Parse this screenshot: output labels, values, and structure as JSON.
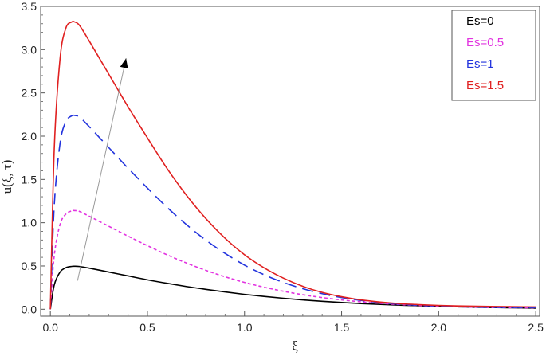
{
  "chart_data": {
    "type": "line",
    "title": "",
    "xlabel": "ξ",
    "ylabel": "u(ξ, τ)",
    "xlim": [
      -0.05,
      2.52
    ],
    "ylim": [
      -0.08,
      3.5
    ],
    "x_ticks": [
      0.0,
      0.5,
      1.0,
      1.5,
      2.0,
      2.5
    ],
    "y_ticks": [
      0.0,
      0.5,
      1.0,
      1.5,
      2.0,
      2.5,
      3.0,
      3.5
    ],
    "x_tick_labels": [
      "0.0",
      "0.5",
      "1.0",
      "1.5",
      "2.0",
      "2.5"
    ],
    "y_tick_labels": [
      "0.0",
      "0.5",
      "1.0",
      "1.5",
      "2.0",
      "2.5",
      "3.0",
      "3.5"
    ],
    "grid": false,
    "legend_position": "top-right",
    "x": [
      0,
      0.02,
      0.05,
      0.08,
      0.11,
      0.125,
      0.15,
      0.2,
      0.3,
      0.4,
      0.5,
      0.6,
      0.7,
      0.8,
      0.9,
      1.0,
      1.1,
      1.2,
      1.3,
      1.4,
      1.5,
      1.6,
      1.7,
      1.8,
      1.9,
      2.0,
      2.1,
      2.2,
      2.3,
      2.4,
      2.5
    ],
    "series": [
      {
        "name": "Es=0",
        "color": "#000000",
        "dash": "solid",
        "values": [
          0,
          0.28,
          0.43,
          0.48,
          0.495,
          0.497,
          0.494,
          0.475,
          0.43,
          0.385,
          0.34,
          0.3,
          0.263,
          0.23,
          0.2,
          0.172,
          0.148,
          0.127,
          0.108,
          0.092,
          0.078,
          0.066,
          0.056,
          0.047,
          0.04,
          0.033,
          0.028,
          0.023,
          0.019,
          0.016,
          0.013
        ]
      },
      {
        "name": "Es=0.5",
        "color": "#e233e0",
        "dash": "short",
        "values": [
          0,
          0.62,
          0.98,
          1.1,
          1.137,
          1.14,
          1.13,
          1.075,
          0.96,
          0.845,
          0.735,
          0.63,
          0.535,
          0.45,
          0.375,
          0.31,
          0.255,
          0.208,
          0.168,
          0.135,
          0.108,
          0.086,
          0.068,
          0.054,
          0.043,
          0.034,
          0.028,
          0.023,
          0.02,
          0.018,
          0.016
        ]
      },
      {
        "name": "Es=1",
        "color": "#2233dd",
        "dash": "long",
        "values": [
          0,
          1.2,
          1.92,
          2.17,
          2.235,
          2.24,
          2.22,
          2.11,
          1.87,
          1.63,
          1.4,
          1.18,
          0.98,
          0.8,
          0.645,
          0.51,
          0.4,
          0.31,
          0.238,
          0.18,
          0.135,
          0.102,
          0.077,
          0.059,
          0.046,
          0.037,
          0.031,
          0.026,
          0.023,
          0.021,
          0.019
        ]
      },
      {
        "name": "Es=1.5",
        "color": "#e02020",
        "dash": "solid",
        "values": [
          0,
          1.85,
          2.9,
          3.25,
          3.32,
          3.32,
          3.28,
          3.1,
          2.72,
          2.34,
          1.98,
          1.63,
          1.32,
          1.05,
          0.82,
          0.63,
          0.48,
          0.36,
          0.265,
          0.195,
          0.145,
          0.108,
          0.083,
          0.065,
          0.053,
          0.044,
          0.038,
          0.034,
          0.031,
          0.029,
          0.027
        ]
      }
    ],
    "annotation_arrow": {
      "from": [
        0.14,
        0.33
      ],
      "to": [
        0.39,
        2.9
      ],
      "meaning": "increasing Es"
    }
  }
}
